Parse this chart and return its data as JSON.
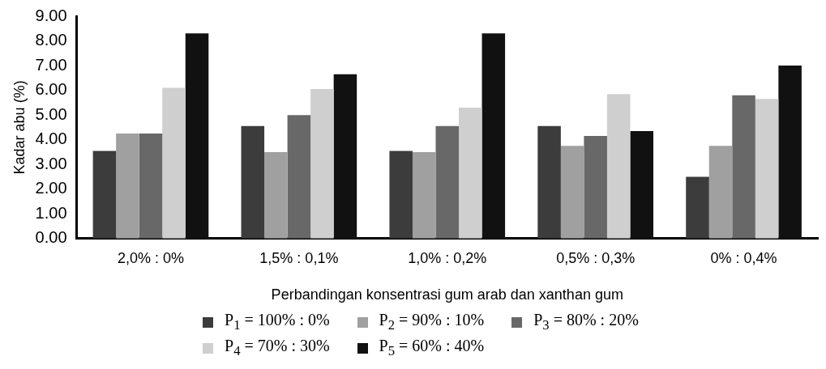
{
  "chart_data": {
    "type": "bar",
    "xlabel": "Perbandingan konsentrasi gum arab dan xanthan gum",
    "ylabel": "Kadar abu (%)",
    "categories": [
      "2,0% : 0%",
      "1,5% : 0,1%",
      "1,0% : 0,2%",
      "0,5% : 0,3%",
      "0% : 0,4%"
    ],
    "series": [
      {
        "name": "P$_{1}$ = 100% : 0%",
        "color": "#3c3c3c",
        "values": [
          3.55,
          4.55,
          3.55,
          4.55,
          2.5
        ]
      },
      {
        "name": "P$_{2}$ = 90% : 10%",
        "color": "#a0a0a0",
        "values": [
          4.25,
          3.5,
          3.5,
          3.75,
          3.75
        ]
      },
      {
        "name": "P$_{3}$ = 80% : 20%",
        "color": "#686868",
        "values": [
          4.25,
          5.0,
          4.55,
          4.15,
          5.8
        ]
      },
      {
        "name": "P$_{4}$ = 70% : 30%",
        "color": "#cfcfcf",
        "values": [
          6.1,
          6.05,
          5.3,
          5.85,
          5.65
        ]
      },
      {
        "name": "P$_{5}$ = 60% : 40%",
        "color": "#111111",
        "values": [
          8.3,
          6.65,
          8.3,
          4.35,
          7.0
        ]
      }
    ],
    "ylim": [
      0,
      9
    ],
    "yticks": [
      {
        "value": 0,
        "label": "0.00"
      },
      {
        "value": 1,
        "label": "1.00"
      },
      {
        "value": 2,
        "label": "2.00"
      },
      {
        "value": 3,
        "label": "3.00"
      },
      {
        "value": 4,
        "label": "4.00"
      },
      {
        "value": 5,
        "label": "5.00"
      },
      {
        "value": 6,
        "label": "6.00"
      },
      {
        "value": 7,
        "label": "7.00"
      },
      {
        "value": 8,
        "label": "8.00"
      },
      {
        "value": 9,
        "label": "9.00"
      }
    ],
    "grid": false,
    "legend": "bottom"
  }
}
